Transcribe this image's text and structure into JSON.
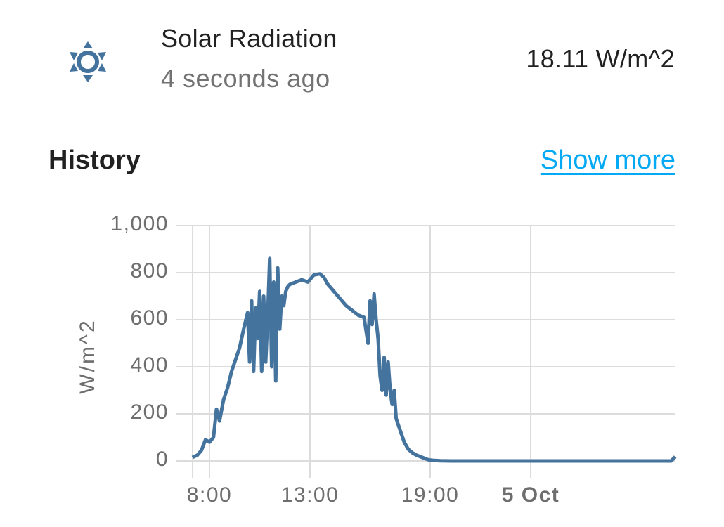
{
  "entity": {
    "icon": "sun-icon",
    "name": "Solar Radiation",
    "last_changed": "4 seconds ago",
    "state": "18.11 W/m^2",
    "icon_color": "#44739e"
  },
  "history": {
    "title": "History",
    "show_more": "Show more",
    "link_color": "#03a9f4"
  },
  "chart_data": {
    "type": "line",
    "title": "",
    "xlabel": "",
    "ylabel": "W/m^2",
    "ylim": [
      0,
      1000
    ],
    "y_ticks": [
      "1,000",
      "800",
      "600",
      "400",
      "200",
      "0"
    ],
    "x_ticks": [
      {
        "label": "8:00",
        "bold": false
      },
      {
        "label": "13:00",
        "bold": false
      },
      {
        "label": "19:00",
        "bold": false
      },
      {
        "label": "5 Oct",
        "bold": true
      }
    ],
    "grid": true,
    "legend": "none",
    "line_color": "#44739e",
    "series": [
      {
        "name": "Solar Radiation",
        "x_hours": [
          7.15,
          7.4,
          7.6,
          7.8,
          8.0,
          8.2,
          8.35,
          8.5,
          8.7,
          8.9,
          9.1,
          9.3,
          9.5,
          9.7,
          9.9,
          10.0,
          10.1,
          10.2,
          10.3,
          10.4,
          10.5,
          10.6,
          10.7,
          10.8,
          10.9,
          11.0,
          11.1,
          11.2,
          11.3,
          11.4,
          11.5,
          11.6,
          11.7,
          11.8,
          11.9,
          12.0,
          12.3,
          12.6,
          12.9,
          13.2,
          13.5,
          13.7,
          13.9,
          14.2,
          14.5,
          14.8,
          15.1,
          15.4,
          15.7,
          15.9,
          16.0,
          16.1,
          16.2,
          16.3,
          16.4,
          16.5,
          16.6,
          16.7,
          16.8,
          16.9,
          17.0,
          17.1,
          17.2,
          17.3,
          17.5,
          17.7,
          17.9,
          18.1,
          18.3,
          18.6,
          18.9,
          19.2,
          19.5,
          20.0,
          22.0,
          24.0,
          26.0,
          28.0,
          30.0,
          31.0,
          31.2
        ],
        "values": [
          15,
          25,
          45,
          90,
          80,
          100,
          220,
          170,
          260,
          310,
          380,
          430,
          480,
          560,
          630,
          420,
          680,
          380,
          650,
          520,
          720,
          380,
          700,
          420,
          610,
          860,
          400,
          760,
          340,
          820,
          560,
          700,
          660,
          720,
          740,
          750,
          760,
          770,
          760,
          790,
          795,
          780,
          750,
          720,
          690,
          660,
          640,
          620,
          610,
          500,
          680,
          580,
          710,
          600,
          520,
          360,
          300,
          440,
          280,
          420,
          300,
          240,
          300,
          180,
          130,
          80,
          50,
          35,
          25,
          15,
          5,
          2,
          1,
          0,
          0,
          0,
          0,
          0,
          0,
          0,
          18
        ]
      }
    ]
  }
}
